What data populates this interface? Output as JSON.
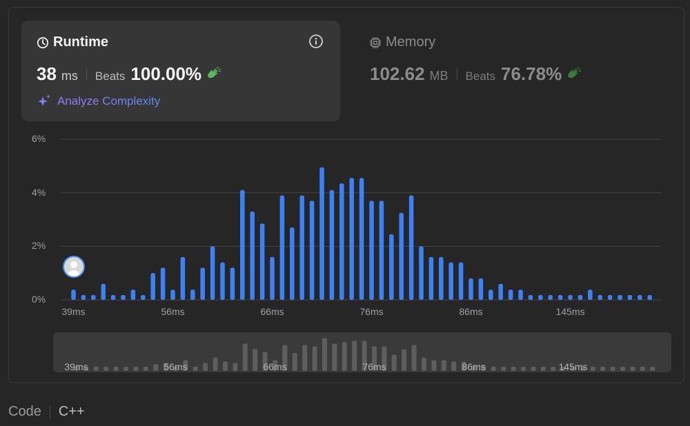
{
  "runtime": {
    "title": "Runtime",
    "value": "38",
    "unit": "ms",
    "beats_label": "Beats",
    "beats_value": "100.00%",
    "analyze_label": "Analyze Complexity"
  },
  "memory": {
    "title": "Memory",
    "value": "102.62",
    "unit": "MB",
    "beats_label": "Beats",
    "beats_value": "76.78%"
  },
  "colors": {
    "bar": "#3b82f6",
    "overview_bar": "#5e5e5e",
    "grid": "#444444",
    "clap": "#5cb85c"
  },
  "footer": {
    "code_label": "Code",
    "language": "C++"
  },
  "chart_data": {
    "type": "bar",
    "ylabel": "",
    "xlabel": "",
    "ylim": [
      0,
      6
    ],
    "y_ticks": [
      "6%",
      "4%",
      "2%",
      "0%"
    ],
    "x_tick_labels": [
      {
        "index": 0,
        "label": "39ms"
      },
      {
        "index": 10,
        "label": "56ms"
      },
      {
        "index": 20,
        "label": "66ms"
      },
      {
        "index": 30,
        "label": "76ms"
      },
      {
        "index": 40,
        "label": "86ms"
      },
      {
        "index": 50,
        "label": "145ms"
      }
    ],
    "user_index": 0,
    "values": [
      0.38,
      0.18,
      0.18,
      0.6,
      0.18,
      0.18,
      0.38,
      0.18,
      1.0,
      1.2,
      0.38,
      1.6,
      0.38,
      1.2,
      2.0,
      1.4,
      1.2,
      4.1,
      3.3,
      2.85,
      1.6,
      3.9,
      2.7,
      3.9,
      3.7,
      4.95,
      4.1,
      4.35,
      4.55,
      4.55,
      3.7,
      3.7,
      2.45,
      3.25,
      3.9,
      2.0,
      1.6,
      1.6,
      1.4,
      1.4,
      0.8,
      0.8,
      0.38,
      0.6,
      0.38,
      0.38,
      0.18,
      0.18,
      0.18,
      0.18,
      0.18,
      0.18,
      0.38,
      0.18,
      0.18,
      0.18,
      0.18,
      0.18,
      0.18
    ]
  }
}
